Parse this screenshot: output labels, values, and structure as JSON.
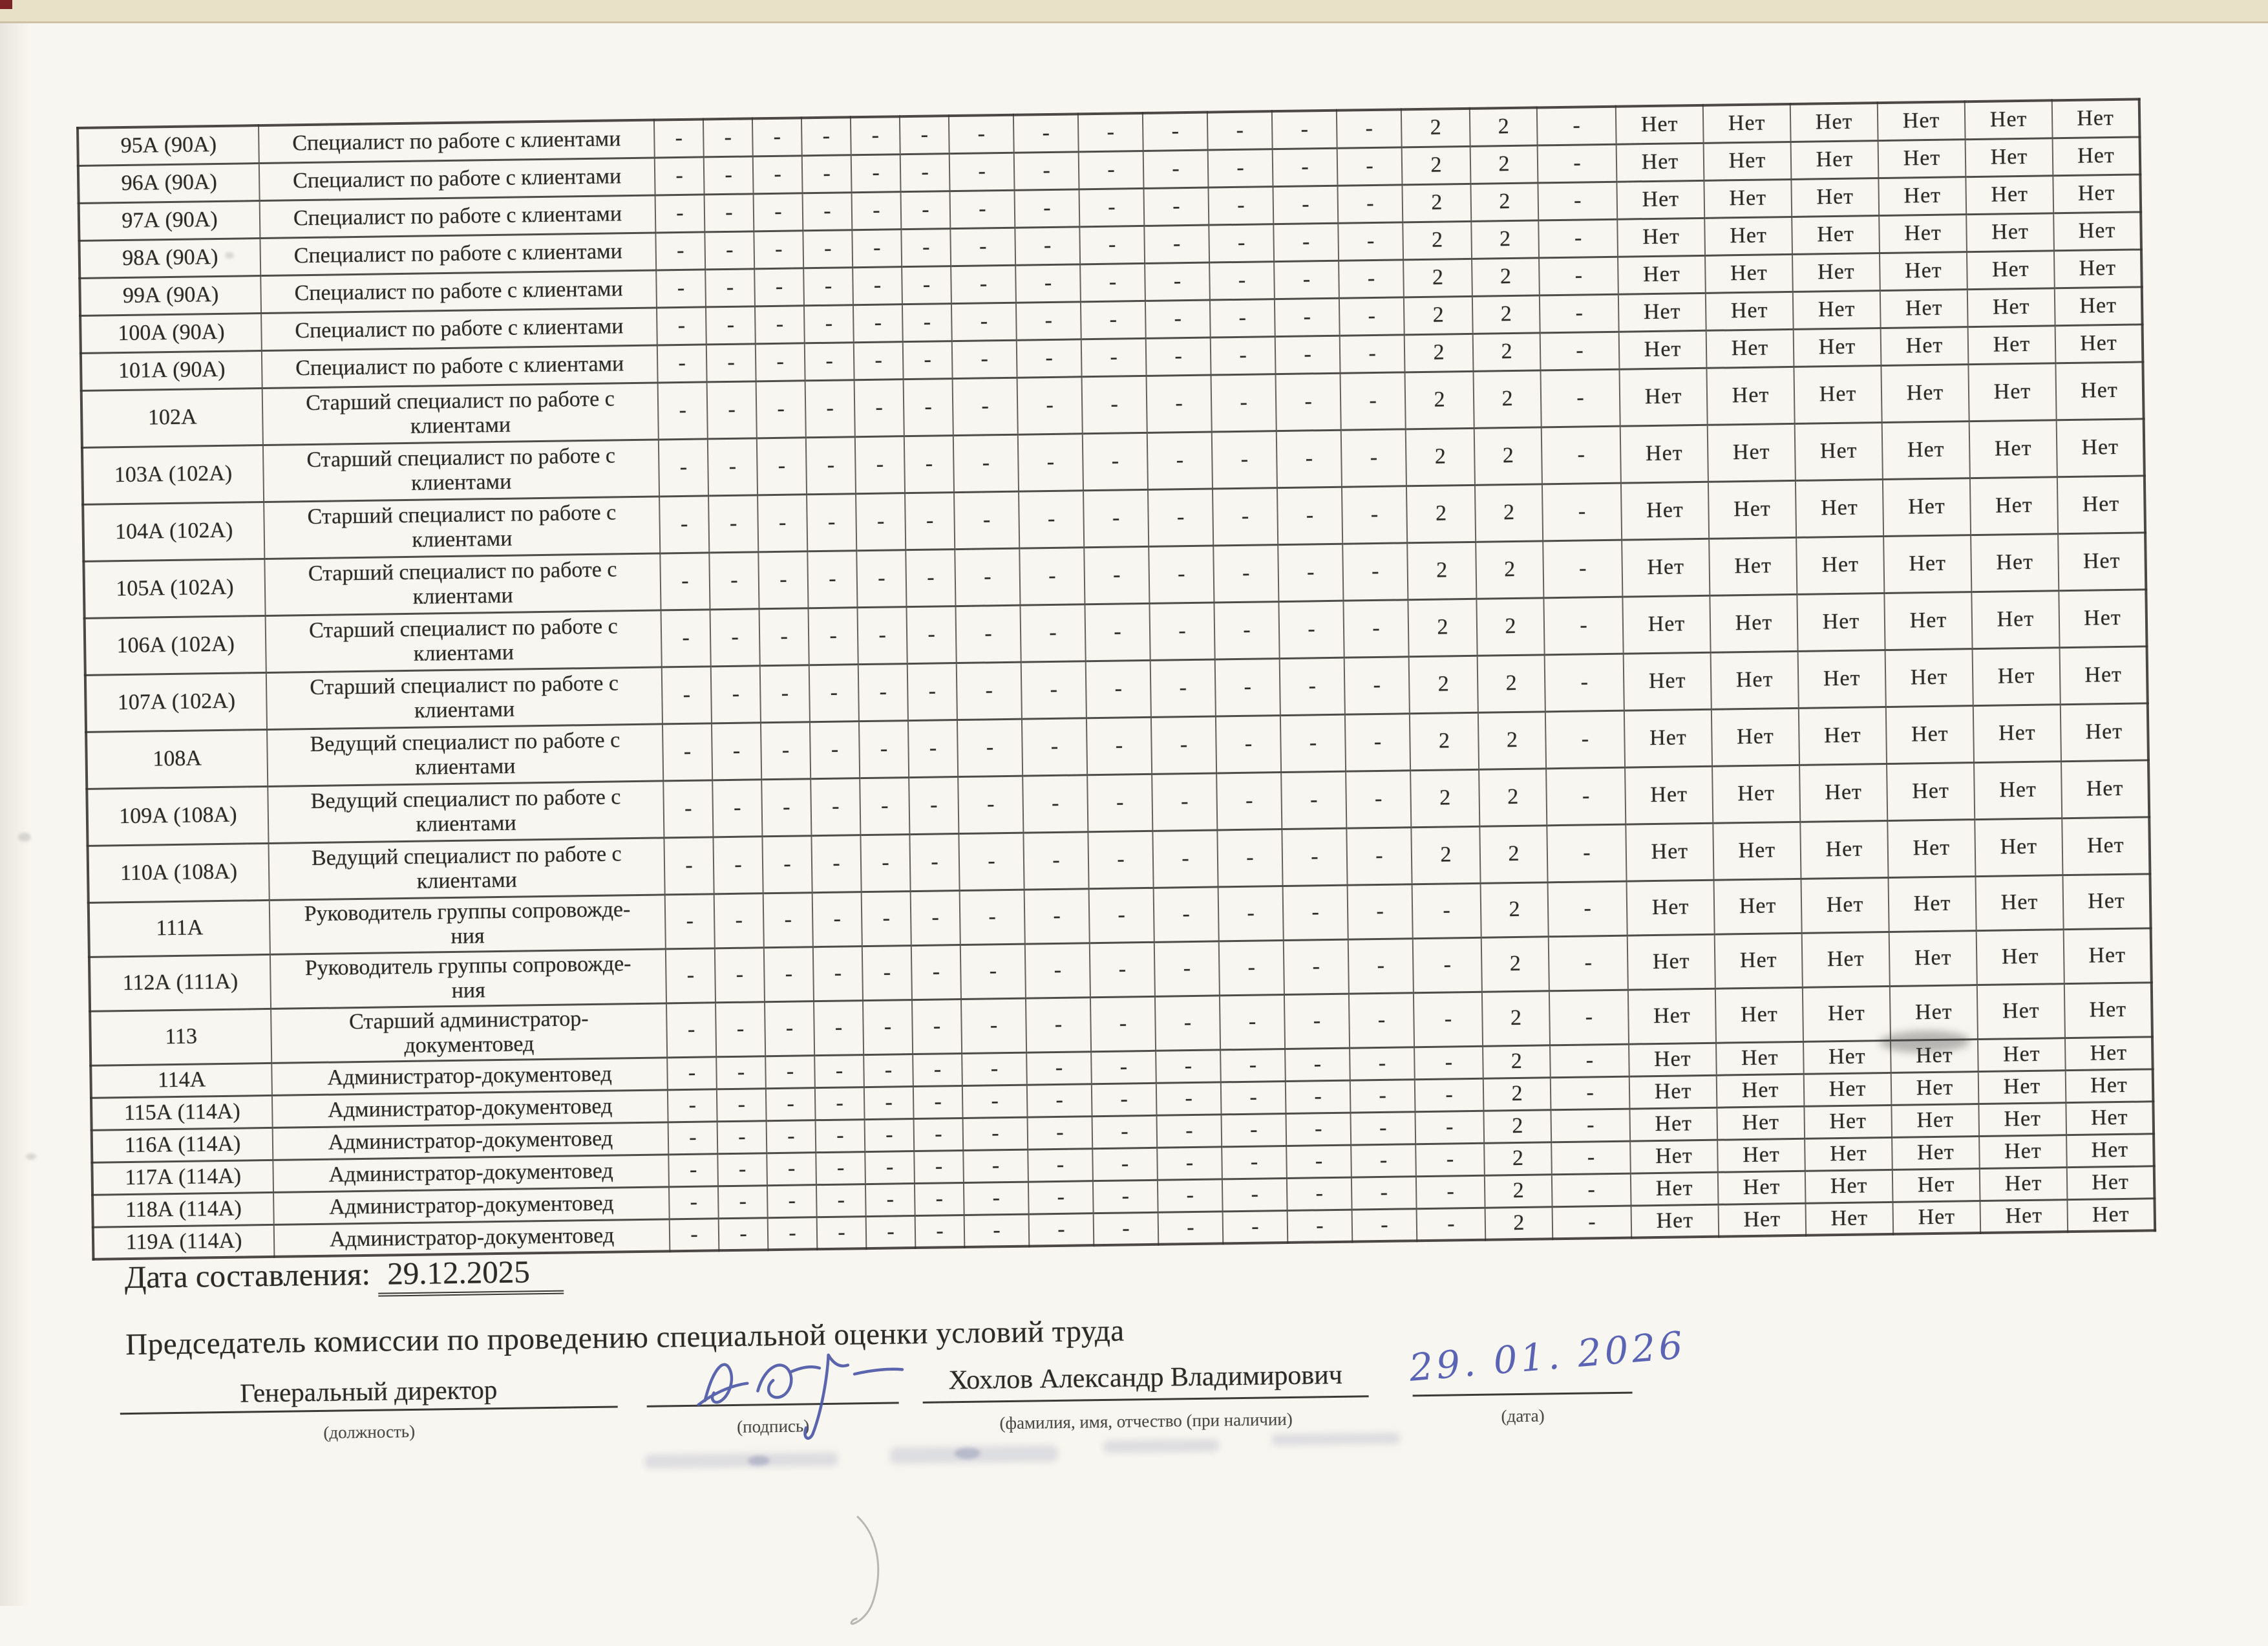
{
  "table": {
    "cell_patterns": {
      "two_twos": [
        "-",
        "-",
        "-",
        "-",
        "-",
        "-",
        "-",
        "-",
        "-",
        "-",
        "-",
        "-",
        "-",
        "2",
        "2",
        "-",
        "Нет",
        "Нет",
        "Нет",
        "Нет",
        "Нет",
        "Нет"
      ],
      "one_two": [
        "-",
        "-",
        "-",
        "-",
        "-",
        "-",
        "-",
        "-",
        "-",
        "-",
        "-",
        "-",
        "-",
        "-",
        "2",
        "-",
        "Нет",
        "Нет",
        "Нет",
        "Нет",
        "Нет",
        "Нет"
      ]
    },
    "rows": [
      {
        "num": "95А (90А)",
        "title": "Специалист по работе с клиентами",
        "pattern": "two_twos"
      },
      {
        "num": "96А (90А)",
        "title": "Специалист по работе с клиентами",
        "pattern": "two_twos"
      },
      {
        "num": "97А (90А)",
        "title": "Специалист по работе с клиентами",
        "pattern": "two_twos"
      },
      {
        "num": "98А (90А)",
        "title": "Специалист по работе с клиентами",
        "pattern": "two_twos"
      },
      {
        "num": "99А (90А)",
        "title": "Специалист по работе с клиентами",
        "pattern": "two_twos"
      },
      {
        "num": "100А (90А)",
        "title": "Специалист по работе с клиентами",
        "pattern": "two_twos"
      },
      {
        "num": "101А (90А)",
        "title": "Специалист по работе с клиентами",
        "pattern": "two_twos"
      },
      {
        "num": "102А",
        "title": "Старший специалист по работе с\nклиентами",
        "pattern": "two_twos"
      },
      {
        "num": "103А (102А)",
        "title": "Старший специалист по работе с\nклиентами",
        "pattern": "two_twos"
      },
      {
        "num": "104А (102А)",
        "title": "Старший специалист по работе с\nклиентами",
        "pattern": "two_twos"
      },
      {
        "num": "105А (102А)",
        "title": "Старший специалист по работе с\nклиентами",
        "pattern": "two_twos"
      },
      {
        "num": "106А (102А)",
        "title": "Старший специалист по работе с\nклиентами",
        "pattern": "two_twos"
      },
      {
        "num": "107А (102А)",
        "title": "Старший специалист по работе с\nклиентами",
        "pattern": "two_twos"
      },
      {
        "num": "108А",
        "title": "Ведущий специалист по работе с\nклиентами",
        "pattern": "two_twos"
      },
      {
        "num": "109А (108А)",
        "title": "Ведущий специалист по работе с\nклиентами",
        "pattern": "two_twos"
      },
      {
        "num": "110А (108А)",
        "title": "Ведущий специалист по работе с\nклиентами",
        "pattern": "two_twos"
      },
      {
        "num": "111А",
        "title": "Руководитель группы сопровожде-\nния",
        "pattern": "one_two"
      },
      {
        "num": "112А (111А)",
        "title": "Руководитель группы сопровожде-\nния",
        "pattern": "one_two"
      },
      {
        "num": "113",
        "title": "Старший администратор-\nдокументовед",
        "pattern": "one_two"
      },
      {
        "num": "114А",
        "title": "Администратор-документовед",
        "pattern": "one_two"
      },
      {
        "num": "115А (114А)",
        "title": "Администратор-документовед",
        "pattern": "one_two"
      },
      {
        "num": "116А (114А)",
        "title": "Администратор-документовед",
        "pattern": "one_two"
      },
      {
        "num": "117А (114А)",
        "title": "Администратор-документовед",
        "pattern": "one_two"
      },
      {
        "num": "118А (114А)",
        "title": "Администратор-документовед",
        "pattern": "one_two"
      },
      {
        "num": "119А (114А)",
        "title": "Администратор-документовед",
        "pattern": "one_two"
      }
    ]
  },
  "footer": {
    "date_label": "Дата составления:",
    "date_value": "29.12.2025",
    "chairman_title": "Председатель комиссии по проведению специальной оценки условий труда",
    "position_value": "Генеральный директор",
    "position_caption": "(должность)",
    "signature_caption": "(подпись)",
    "name_value": "Хохлов Александр Владимирович",
    "name_caption": "(фамилия, имя, отчество (при наличии)",
    "handwritten_date": "29. 01. 2026",
    "date_caption": "(дата)"
  },
  "colors": {
    "paper": "#f8f6f0",
    "top_strip": "#e9e0c8",
    "corner_mark": "#7d2427",
    "ink_text": "#2d2b28",
    "pen_blue": "#4c58a8",
    "hand_date_blue": "#5a63b4"
  }
}
